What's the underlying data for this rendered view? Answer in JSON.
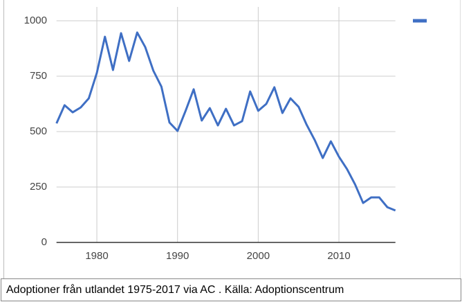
{
  "chart_data": {
    "type": "line",
    "x": [
      1975,
      1976,
      1977,
      1978,
      1979,
      1980,
      1981,
      1982,
      1983,
      1984,
      1985,
      1986,
      1987,
      1988,
      1989,
      1990,
      1991,
      1992,
      1993,
      1994,
      1995,
      1996,
      1997,
      1998,
      1999,
      2000,
      2001,
      2002,
      2003,
      2004,
      2005,
      2006,
      2007,
      2008,
      2009,
      2010,
      2011,
      2012,
      2013,
      2014,
      2015,
      2016,
      2017
    ],
    "series": [
      {
        "color": "#3f6fc4",
        "values": [
          537,
          619,
          587,
          609,
          650,
          765,
          928,
          778,
          944,
          819,
          947,
          881,
          775,
          703,
          541,
          503,
          594,
          691,
          550,
          606,
          528,
          603,
          528,
          547,
          681,
          594,
          625,
          700,
          584,
          650,
          612,
          531,
          462,
          381,
          456,
          387,
          331,
          262,
          178,
          203,
          203,
          159,
          144
        ]
      }
    ],
    "xlim": [
      1975,
      2017
    ],
    "xticks": [
      1980,
      1990,
      2000,
      2010
    ],
    "ylim": [
      0,
      1000
    ],
    "yticks": [
      0,
      250,
      500,
      750,
      1000
    ],
    "grid": true,
    "caption": "Adoptioner från utlandet 1975-2017 via AC . Källa: Adoptionscentrum"
  }
}
